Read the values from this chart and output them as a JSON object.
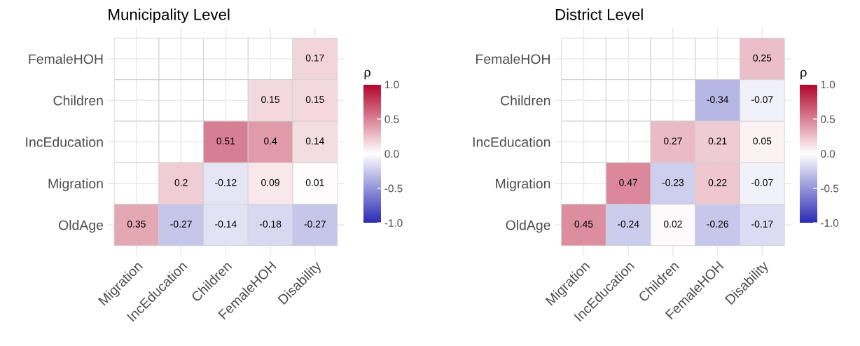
{
  "chart_data": [
    {
      "type": "heatmap",
      "title": "Municipality Level",
      "categories": [
        "Migration",
        "IncEducation",
        "Children",
        "FemaleHOH",
        "Disability"
      ],
      "y_categories": [
        "FemaleHOH",
        "Children",
        "IncEducation",
        "Migration",
        "OldAge"
      ],
      "cells": [
        [
          null,
          null,
          null,
          null,
          0.17
        ],
        [
          null,
          null,
          null,
          0.15,
          0.15
        ],
        [
          null,
          null,
          0.51,
          0.4,
          0.14
        ],
        [
          null,
          0.2,
          -0.12,
          0.09,
          0.01
        ],
        [
          0.35,
          -0.27,
          -0.14,
          -0.18,
          -0.27
        ]
      ],
      "data_labels": true,
      "clabel": "ρ",
      "clim": [
        -1,
        1
      ],
      "cticks": [
        {
          "value": -1,
          "label": "-1.0"
        },
        {
          "value": -0.5,
          "label": "-0.5"
        },
        {
          "value": 0,
          "label": "0.0"
        },
        {
          "value": 0.5,
          "label": "0.5"
        },
        {
          "value": 1,
          "label": "1.0"
        }
      ],
      "grid": true
    },
    {
      "type": "heatmap",
      "title": "District Level",
      "categories": [
        "Migration",
        "IncEducation",
        "Children",
        "FemaleHOH",
        "Disability"
      ],
      "y_categories": [
        "FemaleHOH",
        "Children",
        "IncEducation",
        "Migration",
        "OldAge"
      ],
      "cells": [
        [
          null,
          null,
          null,
          null,
          0.25
        ],
        [
          null,
          null,
          null,
          -0.34,
          -0.07
        ],
        [
          null,
          null,
          0.27,
          0.21,
          0.05
        ],
        [
          null,
          0.47,
          -0.23,
          0.22,
          -0.07
        ],
        [
          0.45,
          -0.24,
          0.02,
          -0.26,
          -0.17
        ]
      ],
      "data_labels": true,
      "clabel": "ρ",
      "clim": [
        -1,
        1
      ],
      "cticks": [
        {
          "value": -1,
          "label": "-1.0"
        },
        {
          "value": -0.5,
          "label": "-0.5"
        },
        {
          "value": 0,
          "label": "0.0"
        },
        {
          "value": 0.5,
          "label": "0.5"
        },
        {
          "value": 1,
          "label": "1.0"
        }
      ],
      "grid": true
    }
  ]
}
